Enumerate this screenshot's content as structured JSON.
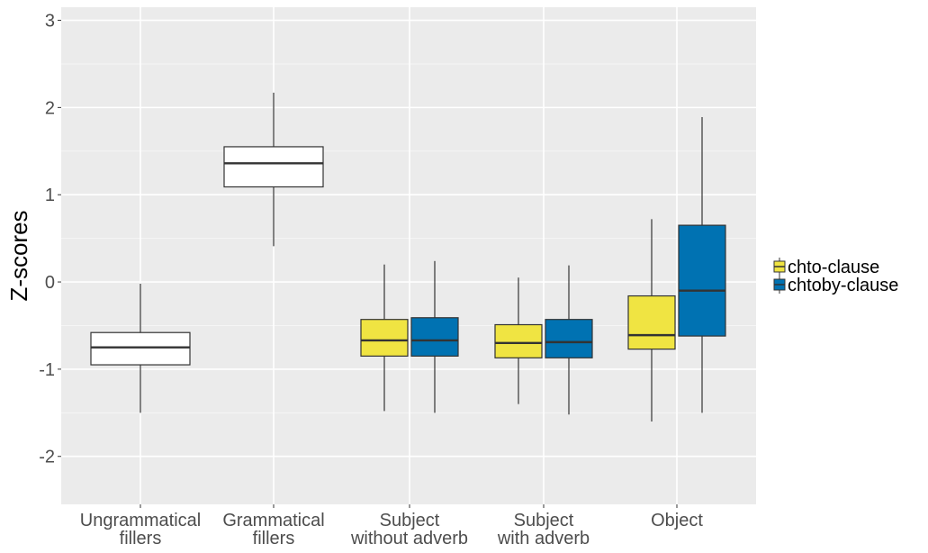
{
  "chart_data": {
    "type": "boxplot",
    "title": "",
    "xlabel": "",
    "ylabel": "Z-scores",
    "ylim": [
      -2.55,
      3.15
    ],
    "yticks": [
      -2,
      -1,
      0,
      1,
      2,
      3
    ],
    "ytick_labels": [
      "-2",
      "-1",
      "0",
      "1",
      "2",
      "3"
    ],
    "grid": true,
    "categories": [
      [
        "Ungrammatical",
        "fillers"
      ],
      [
        "Grammatical",
        "fillers"
      ],
      [
        "Subject",
        "without adverb"
      ],
      [
        "Subject",
        "with adverb"
      ],
      [
        "Object"
      ]
    ],
    "legend": {
      "placement": "right",
      "entries": [
        {
          "label": "chto-clause",
          "color": "#F0E442"
        },
        {
          "label": "chtoby-clause",
          "color": "#0072B2"
        }
      ]
    },
    "boxes": [
      {
        "category": 0,
        "group": null,
        "fill": "#FFFFFF",
        "whisker_low": -1.5,
        "q1": -0.95,
        "median": -0.75,
        "q3": -0.58,
        "whisker_high": -0.02
      },
      {
        "category": 1,
        "group": null,
        "fill": "#FFFFFF",
        "whisker_low": 0.41,
        "q1": 1.09,
        "median": 1.36,
        "q3": 1.55,
        "whisker_high": 2.17
      },
      {
        "category": 2,
        "group": "chto-clause",
        "fill": "#F0E442",
        "whisker_low": -1.48,
        "q1": -0.85,
        "median": -0.67,
        "q3": -0.43,
        "whisker_high": 0.2
      },
      {
        "category": 2,
        "group": "chtoby-clause",
        "fill": "#0072B2",
        "whisker_low": -1.5,
        "q1": -0.85,
        "median": -0.67,
        "q3": -0.41,
        "whisker_high": 0.24
      },
      {
        "category": 3,
        "group": "chto-clause",
        "fill": "#F0E442",
        "whisker_low": -1.4,
        "q1": -0.87,
        "median": -0.7,
        "q3": -0.49,
        "whisker_high": 0.05
      },
      {
        "category": 3,
        "group": "chtoby-clause",
        "fill": "#0072B2",
        "whisker_low": -1.52,
        "q1": -0.87,
        "median": -0.69,
        "q3": -0.43,
        "whisker_high": 0.19
      },
      {
        "category": 4,
        "group": "chto-clause",
        "fill": "#F0E442",
        "whisker_low": -1.6,
        "q1": -0.77,
        "median": -0.61,
        "q3": -0.16,
        "whisker_high": 0.72
      },
      {
        "category": 4,
        "group": "chtoby-clause",
        "fill": "#0072B2",
        "whisker_low": -1.5,
        "q1": -0.62,
        "median": -0.1,
        "q3": 0.65,
        "whisker_high": 1.89
      }
    ]
  }
}
